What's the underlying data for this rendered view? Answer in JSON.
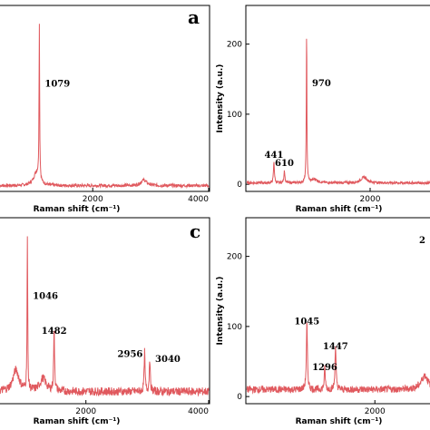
{
  "chart_data": [
    {
      "type": "line",
      "panel": "a",
      "xlabel": "Raman shift (cm⁻¹)",
      "ylabel": "",
      "xlim": [
        400,
        4000
      ],
      "ylim": [
        0,
        250
      ],
      "xticks": [
        2000,
        4000
      ],
      "yticks": [],
      "line_color": "#e0595e",
      "peaks": [
        {
          "x": 1079,
          "y": 215,
          "label": "1079"
        },
        {
          "x": 1030,
          "y": 18,
          "label": ""
        },
        {
          "x": 2880,
          "y": 8,
          "label": ""
        }
      ],
      "baseline": 3
    },
    {
      "type": "line",
      "panel": "b",
      "xlabel": "Raman shift (cm⁻¹)",
      "ylabel": "Intensity (a.u.)",
      "xlim": [
        0,
        3000
      ],
      "ylim": [
        -5,
        250
      ],
      "xticks": [
        2000
      ],
      "yticks": [
        0,
        100,
        200
      ],
      "line_color": "#e0595e",
      "peaks": [
        {
          "x": 441,
          "y": 30,
          "label": "441"
        },
        {
          "x": 610,
          "y": 18,
          "label": "610"
        },
        {
          "x": 970,
          "y": 215,
          "label": "970"
        },
        {
          "x": 1100,
          "y": 5,
          "label": ""
        },
        {
          "x": 1900,
          "y": 8,
          "label": ""
        }
      ],
      "baseline": 2
    },
    {
      "type": "line",
      "panel": "c",
      "xlabel": "Raman shift (cm⁻¹)",
      "ylabel": "",
      "xlim": [
        600,
        4000
      ],
      "ylim": [
        0,
        250
      ],
      "xticks": [
        2000,
        4000
      ],
      "yticks": [],
      "line_color": "#e0595e",
      "peaks": [
        {
          "x": 1046,
          "y": 215,
          "label": "1046"
        },
        {
          "x": 1482,
          "y": 85,
          "label": "1482"
        },
        {
          "x": 2956,
          "y": 55,
          "label": "2956"
        },
        {
          "x": 3040,
          "y": 48,
          "label": "3040"
        },
        {
          "x": 860,
          "y": 30,
          "label": ""
        },
        {
          "x": 1300,
          "y": 18,
          "label": ""
        }
      ],
      "baseline": 12
    },
    {
      "type": "line",
      "panel": "d",
      "xlabel": "Raman shift (cm⁻¹)",
      "ylabel": "Intensity (a.u.)",
      "xlim": [
        200,
        2800
      ],
      "ylim": [
        -5,
        250
      ],
      "xticks": [
        2000
      ],
      "yticks": [
        0,
        100,
        200
      ],
      "line_color": "#e0595e",
      "peaks": [
        {
          "x": 1045,
          "y": 95,
          "label": "1045"
        },
        {
          "x": 1296,
          "y": 30,
          "label": "1296"
        },
        {
          "x": 1447,
          "y": 60,
          "label": "1447"
        },
        {
          "x": 2700,
          "y": 20,
          "label": ""
        }
      ],
      "baseline": 10
    }
  ],
  "panel_letters": [
    "a",
    "c"
  ],
  "cut_label": "2"
}
